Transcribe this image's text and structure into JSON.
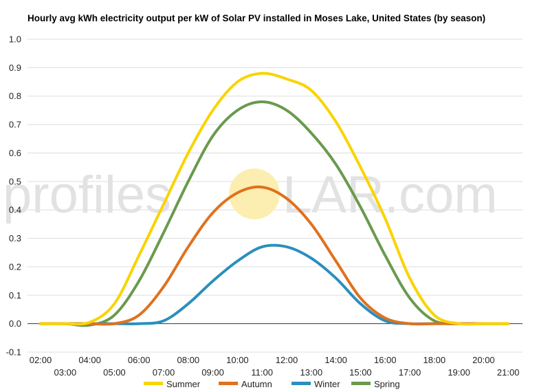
{
  "chart_data": {
    "type": "line",
    "title": "Hourly avg kWh electricity output per kW of Solar PV installed in Moses Lake, United States (by season)",
    "xlabel": "",
    "ylabel": "",
    "x": [
      "02:00",
      "03:00",
      "04:00",
      "05:00",
      "06:00",
      "07:00",
      "08:00",
      "09:00",
      "10:00",
      "11:00",
      "12:00",
      "13:00",
      "14:00",
      "15:00",
      "16:00",
      "17:00",
      "18:00",
      "19:00",
      "20:00",
      "21:00"
    ],
    "ylim": [
      -0.1,
      1.0
    ],
    "yticks": [
      "-0.1",
      "0.0",
      "0.1",
      "0.2",
      "0.3",
      "0.4",
      "0.5",
      "0.6",
      "0.7",
      "0.8",
      "0.9",
      "1.0"
    ],
    "grid": true,
    "legend_position": "bottom",
    "series": [
      {
        "name": "Summer",
        "color": "#f9d400",
        "values": [
          0,
          0,
          0.005,
          0.07,
          0.24,
          0.42,
          0.6,
          0.75,
          0.85,
          0.88,
          0.86,
          0.82,
          0.71,
          0.55,
          0.37,
          0.16,
          0.03,
          0,
          0,
          0
        ]
      },
      {
        "name": "Autumn",
        "color": "#e0711d",
        "values": [
          0,
          0,
          0,
          0,
          0.03,
          0.13,
          0.27,
          0.39,
          0.46,
          0.48,
          0.44,
          0.35,
          0.22,
          0.09,
          0.02,
          0,
          0,
          0,
          0,
          0
        ]
      },
      {
        "name": "Winter",
        "color": "#2a8fbd",
        "values": [
          0,
          0,
          0,
          0,
          0,
          0.01,
          0.07,
          0.15,
          0.22,
          0.27,
          0.27,
          0.23,
          0.16,
          0.07,
          0.01,
          0,
          0,
          0,
          0,
          0
        ]
      },
      {
        "name": "Spring",
        "color": "#6a9a4e",
        "values": [
          0,
          0,
          -0.005,
          0.03,
          0.15,
          0.32,
          0.5,
          0.66,
          0.75,
          0.78,
          0.75,
          0.67,
          0.56,
          0.41,
          0.24,
          0.09,
          0.01,
          0,
          0,
          0
        ]
      }
    ]
  },
  "watermark": {
    "part1": "profiles",
    "part2": "LAR.com",
    "sun_color": "#fbeeb0"
  }
}
